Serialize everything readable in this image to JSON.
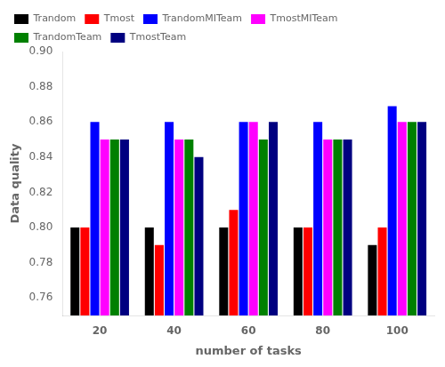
{
  "chart_data": {
    "type": "bar",
    "xlabel": "number of tasks",
    "ylabel": "Data quality",
    "categories": [
      20,
      40,
      60,
      80,
      100
    ],
    "series": [
      {
        "name": "Trandom",
        "color": "#000000",
        "values": [
          0.8,
          0.8,
          0.8,
          0.8,
          0.79
        ]
      },
      {
        "name": "Tmost",
        "color": "#ff0000",
        "values": [
          0.8,
          0.79,
          0.81,
          0.8,
          0.8
        ]
      },
      {
        "name": "TrandomMITeam",
        "color": "#0000ff",
        "values": [
          0.86,
          0.86,
          0.86,
          0.86,
          0.869
        ]
      },
      {
        "name": "TmostMITeam",
        "color": "#ff00ff",
        "values": [
          0.85,
          0.85,
          0.86,
          0.85,
          0.86
        ]
      },
      {
        "name": "TrandomTeam",
        "color": "#008000",
        "values": [
          0.85,
          0.85,
          0.85,
          0.85,
          0.86
        ]
      },
      {
        "name": "TmostTeam",
        "color": "#000080",
        "values": [
          0.85,
          0.84,
          0.86,
          0.85,
          0.86
        ]
      }
    ],
    "ylim": [
      0.75,
      0.9
    ],
    "yticks": [
      0.76,
      0.78,
      {
        "value": 0.8,
        "label": "0.80"
      },
      0.82,
      0.84,
      0.86,
      0.88,
      {
        "value": 0.9,
        "label": "0.90"
      }
    ],
    "grid": false,
    "legend": "upper left"
  }
}
